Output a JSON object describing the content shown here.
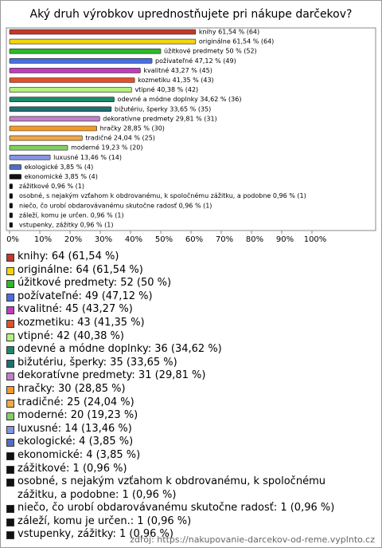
{
  "chart_data": {
    "type": "barh",
    "title": "Aký druh výrobkov uprednostňujete pri nákupe darčekov?",
    "values": [
      61.54,
      61.54,
      50,
      47.12,
      43.27,
      41.35,
      40.38,
      34.62,
      33.65,
      29.81,
      28.85,
      24.04,
      19.23,
      13.46,
      3.85,
      3.85,
      0.96,
      0.96,
      0.96,
      0.96,
      0.96
    ],
    "value_labels": [
      "knihy 61,54 % (64)",
      "originálne 61,54 % (64)",
      "úžitkové predmety 50 % (52)",
      "požívateľné 47,12 % (49)",
      "kvalitné 43,27 % (45)",
      "kozmetiku 41,35 % (43)",
      "vtipné 40,38 % (42)",
      "odevné a módne doplnky 34,62 % (36)",
      "bižutériu, šperky 33,65 % (35)",
      "dekoratívne predmety 29,81 % (31)",
      "hračky 28,85 % (30)",
      "tradičné 24,04 % (25)",
      "moderné 19,23 % (20)",
      "luxusné 13,46 % (14)",
      "ekologické 3,85 % (4)",
      "ekonomické 3,85 % (4)",
      "zážitkové 0,96 % (1)",
      "osobné, s nejakým vzťahom k obdrovanému, k spoločnému zážitku, a podobne 0,96 % (1)",
      "niečo, čo urobí obdarovávanému skutočne radosť 0,96 % (1)",
      "záleží, komu je určen. 0,96 % (1)",
      "vstupenky, zážitky 0,96 % (1)"
    ],
    "legend_labels": [
      "knihy: 64 (61,54 %)",
      "originálne: 64 (61,54 %)",
      "úžitkové predmety: 52 (50 %)",
      "požívateľné: 49 (47,12 %)",
      "kvalitné: 45 (43,27 %)",
      "kozmetiku: 43 (41,35 %)",
      "vtipné: 42 (40,38 %)",
      "odevné a módne doplnky: 36 (34,62 %)",
      "bižutériu, šperky: 35 (33,65 %)",
      "dekoratívne predmety: 31 (29,81 %)",
      "hračky: 30 (28,85 %)",
      "tradičné: 25 (24,04 %)",
      "moderné: 20 (19,23 %)",
      "luxusné: 14 (13,46 %)",
      "ekologické: 4 (3,85 %)",
      "ekonomické: 4 (3,85 %)",
      "zážitkové: 1 (0,96 %)",
      "osobné, s nejakým vzťahom k obdrovanému, k spoločnému zážitku, a podobne: 1 (0,96 %)",
      "niečo, čo urobí obdarovávanému skutočne radosť: 1 (0,96 %)",
      "záleží, komu je určen.: 1 (0,96 %)",
      "vstupenky, zážitky: 1 (0,96 %)"
    ],
    "colors": [
      "#c0392b",
      "#f2d40f",
      "#2db82d",
      "#4a6ee0",
      "#c03cc0",
      "#e0502a",
      "#b4f080",
      "#1a8a6a",
      "#1f6f70",
      "#c080c8",
      "#f09a2a",
      "#f0a848",
      "#80d060",
      "#8494e0",
      "#4f6fc0",
      "#111111",
      "#111111",
      "#111111",
      "#111111",
      "#111111",
      "#111111"
    ],
    "xlim": [
      0,
      100
    ],
    "xticks": [
      {
        "value": 0,
        "label": "0%"
      },
      {
        "value": 10,
        "label": "10%"
      },
      {
        "value": 20,
        "label": "20%"
      },
      {
        "value": 30,
        "label": "30%"
      },
      {
        "value": 40,
        "label": "40%"
      },
      {
        "value": 50,
        "label": "50%"
      },
      {
        "value": 60,
        "label": "60%"
      },
      {
        "value": 70,
        "label": "70%"
      },
      {
        "value": 80,
        "label": "80%"
      },
      {
        "value": 90,
        "label": "90%"
      },
      {
        "value": 100,
        "label": "100%"
      }
    ],
    "source": "zdroj: https://nakupovanie-darcekov-od-reme.vyplnto.cz"
  }
}
